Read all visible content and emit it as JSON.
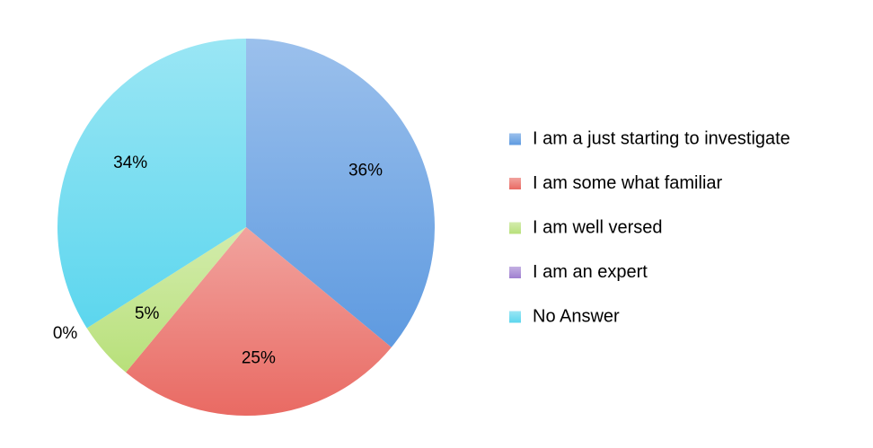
{
  "chart_data": {
    "type": "pie",
    "title": "",
    "slices": [
      {
        "label": "I am a just starting to investigate",
        "value": 36,
        "value_label": "36%",
        "color": "#5e9ae0"
      },
      {
        "label": "I am some what familiar",
        "value": 25,
        "value_label": "25%",
        "color": "#e96a63"
      },
      {
        "label": "I am well versed",
        "value": 5,
        "value_label": "5%",
        "color": "#b8e07a"
      },
      {
        "label": "I am an expert",
        "value": 0,
        "value_label": "0%",
        "color": "#9f7fd0"
      },
      {
        "label": "No Answer",
        "value": 34,
        "value_label": "34%",
        "color": "#5cd6ee"
      }
    ],
    "legend_position": "right",
    "start_angle": "12 o'clock",
    "direction": "clockwise"
  }
}
